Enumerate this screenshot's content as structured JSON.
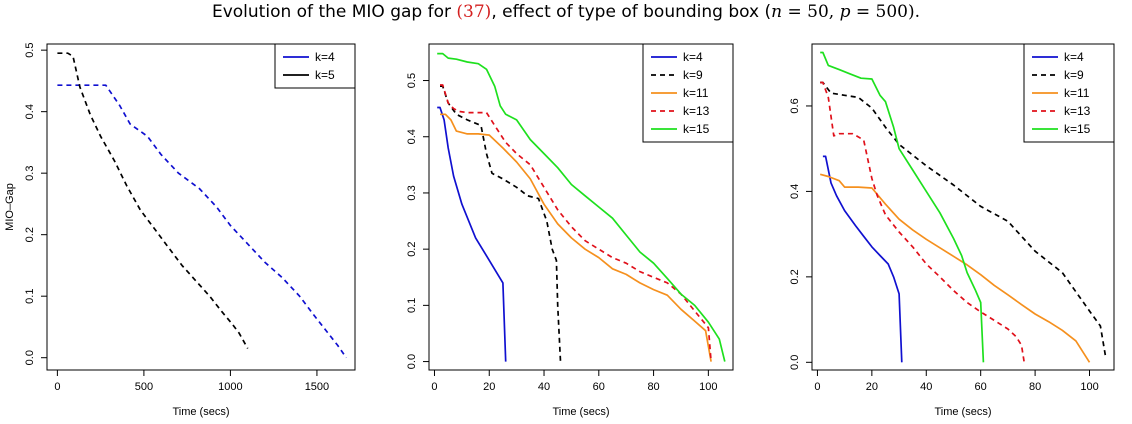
{
  "title": {
    "prefix": "Evolution of the MIO gap for ",
    "ref": "(37)",
    "middle": ", effect of type of bounding box (",
    "n_sym": "n",
    "eq1": " = 50, ",
    "p_sym": "p",
    "eq2": " = 500)."
  },
  "chart_data": [
    {
      "type": "line",
      "xlabel": "Time (secs)",
      "ylabel": "MIO–Gap",
      "xlim": [
        -60,
        1720
      ],
      "ylim": [
        -0.02,
        0.51
      ],
      "xticks": [
        0,
        500,
        1000,
        1500
      ],
      "xtick_labels": [
        "0",
        "500",
        "1000",
        "1500"
      ],
      "yticks": [
        0.0,
        0.1,
        0.2,
        0.3,
        0.4,
        0.5
      ],
      "ytick_labels": [
        "0.0",
        "0.1",
        "0.2",
        "0.3",
        "0.4",
        "0.5"
      ],
      "legend_position": "top-right",
      "series": [
        {
          "name": "k=4",
          "color": "#1010d0",
          "dash": "dashed",
          "legend_dash": "solid",
          "points": [
            [
              0,
              0.443
            ],
            [
              280,
              0.443
            ],
            [
              360,
              0.41
            ],
            [
              420,
              0.38
            ],
            [
              520,
              0.36
            ],
            [
              600,
              0.33
            ],
            [
              700,
              0.3
            ],
            [
              820,
              0.275
            ],
            [
              920,
              0.245
            ],
            [
              1000,
              0.215
            ],
            [
              1100,
              0.185
            ],
            [
              1200,
              0.155
            ],
            [
              1300,
              0.13
            ],
            [
              1400,
              0.1
            ],
            [
              1480,
              0.07
            ],
            [
              1550,
              0.045
            ],
            [
              1620,
              0.02
            ],
            [
              1670,
              0.0
            ]
          ]
        },
        {
          "name": "k=5",
          "color": "#000000",
          "dash": "dashed",
          "legend_dash": "solid",
          "points": [
            [
              0,
              0.495
            ],
            [
              60,
              0.495
            ],
            [
              90,
              0.49
            ],
            [
              130,
              0.44
            ],
            [
              190,
              0.395
            ],
            [
              250,
              0.36
            ],
            [
              330,
              0.32
            ],
            [
              400,
              0.28
            ],
            [
              480,
              0.24
            ],
            [
              560,
              0.21
            ],
            [
              640,
              0.18
            ],
            [
              720,
              0.15
            ],
            [
              800,
              0.125
            ],
            [
              880,
              0.1
            ],
            [
              950,
              0.075
            ],
            [
              1010,
              0.055
            ],
            [
              1050,
              0.04
            ],
            [
              1100,
              0.015
            ]
          ]
        }
      ]
    },
    {
      "type": "line",
      "xlabel": "Time (secs)",
      "ylabel": "",
      "xlim": [
        -2,
        109
      ],
      "ylim": [
        -0.015,
        0.565
      ],
      "xticks": [
        0,
        20,
        40,
        60,
        80,
        100
      ],
      "xtick_labels": [
        "0",
        "20",
        "40",
        "60",
        "80",
        "100"
      ],
      "yticks": [
        0.0,
        0.1,
        0.2,
        0.3,
        0.4,
        0.5
      ],
      "ytick_labels": [
        "0.0",
        "0.1",
        "0.2",
        "0.3",
        "0.4",
        "0.5"
      ],
      "legend_position": "top-right",
      "series": [
        {
          "name": "k=4",
          "color": "#1010d0",
          "dash": "solid",
          "points": [
            [
              1,
              0.452
            ],
            [
              2,
              0.452
            ],
            [
              3.5,
              0.43
            ],
            [
              5,
              0.38
            ],
            [
              7,
              0.33
            ],
            [
              10,
              0.28
            ],
            [
              15,
              0.22
            ],
            [
              20,
              0.18
            ],
            [
              25,
              0.14
            ],
            [
              26,
              0.0
            ]
          ]
        },
        {
          "name": "k=9",
          "color": "#000000",
          "dash": "dashed",
          "points": [
            [
              2,
              0.49
            ],
            [
              3,
              0.49
            ],
            [
              5,
              0.46
            ],
            [
              8,
              0.44
            ],
            [
              12,
              0.43
            ],
            [
              17,
              0.42
            ],
            [
              19,
              0.37
            ],
            [
              21,
              0.335
            ],
            [
              25,
              0.325
            ],
            [
              30,
              0.31
            ],
            [
              34,
              0.295
            ],
            [
              38,
              0.29
            ],
            [
              41,
              0.25
            ],
            [
              43,
              0.2
            ],
            [
              44.5,
              0.18
            ],
            [
              45,
              0.1
            ],
            [
              46,
              0.0
            ]
          ]
        },
        {
          "name": "k=11",
          "color": "#f5901e",
          "dash": "solid",
          "points": [
            [
              2,
              0.44
            ],
            [
              4,
              0.44
            ],
            [
              6,
              0.43
            ],
            [
              8,
              0.41
            ],
            [
              12,
              0.405
            ],
            [
              16,
              0.405
            ],
            [
              20,
              0.403
            ],
            [
              25,
              0.38
            ],
            [
              30,
              0.355
            ],
            [
              35,
              0.325
            ],
            [
              40,
              0.28
            ],
            [
              45,
              0.245
            ],
            [
              50,
              0.22
            ],
            [
              55,
              0.2
            ],
            [
              60,
              0.185
            ],
            [
              65,
              0.165
            ],
            [
              70,
              0.155
            ],
            [
              75,
              0.14
            ],
            [
              80,
              0.128
            ],
            [
              85,
              0.118
            ],
            [
              90,
              0.093
            ],
            [
              95,
              0.072
            ],
            [
              99,
              0.055
            ],
            [
              101,
              0.0
            ]
          ]
        },
        {
          "name": "k=13",
          "color": "#e0101a",
          "dash": "dashed",
          "points": [
            [
              2,
              0.492
            ],
            [
              3,
              0.492
            ],
            [
              5,
              0.46
            ],
            [
              7,
              0.45
            ],
            [
              9,
              0.445
            ],
            [
              12,
              0.443
            ],
            [
              17,
              0.443
            ],
            [
              19,
              0.443
            ],
            [
              22,
              0.42
            ],
            [
              26,
              0.39
            ],
            [
              30,
              0.37
            ],
            [
              35,
              0.35
            ],
            [
              40,
              0.31
            ],
            [
              45,
              0.27
            ],
            [
              50,
              0.24
            ],
            [
              55,
              0.215
            ],
            [
              60,
              0.2
            ],
            [
              65,
              0.185
            ],
            [
              70,
              0.175
            ],
            [
              75,
              0.16
            ],
            [
              80,
              0.15
            ],
            [
              85,
              0.14
            ],
            [
              90,
              0.12
            ],
            [
              95,
              0.09
            ],
            [
              100,
              0.06
            ],
            [
              101,
              0.0
            ]
          ]
        },
        {
          "name": "k=15",
          "color": "#1ee01e",
          "dash": "solid",
          "points": [
            [
              1,
              0.548
            ],
            [
              3,
              0.548
            ],
            [
              5,
              0.54
            ],
            [
              8,
              0.538
            ],
            [
              12,
              0.533
            ],
            [
              16,
              0.53
            ],
            [
              19,
              0.52
            ],
            [
              22,
              0.49
            ],
            [
              24,
              0.455
            ],
            [
              26,
              0.44
            ],
            [
              30,
              0.43
            ],
            [
              35,
              0.395
            ],
            [
              40,
              0.37
            ],
            [
              45,
              0.345
            ],
            [
              50,
              0.315
            ],
            [
              55,
              0.295
            ],
            [
              60,
              0.275
            ],
            [
              65,
              0.255
            ],
            [
              70,
              0.225
            ],
            [
              75,
              0.195
            ],
            [
              80,
              0.175
            ],
            [
              85,
              0.148
            ],
            [
              90,
              0.12
            ],
            [
              95,
              0.1
            ],
            [
              100,
              0.07
            ],
            [
              104,
              0.04
            ],
            [
              106,
              0.0
            ]
          ]
        }
      ]
    },
    {
      "type": "line",
      "xlabel": "Time (secs)",
      "ylabel": "",
      "xlim": [
        -2,
        109
      ],
      "ylim": [
        -0.018,
        0.745
      ],
      "xticks": [
        0,
        20,
        40,
        60,
        80,
        100
      ],
      "xtick_labels": [
        "0",
        "20",
        "40",
        "60",
        "80",
        "100"
      ],
      "yticks": [
        0.0,
        0.2,
        0.4,
        0.6
      ],
      "ytick_labels": [
        "0.0",
        "0.2",
        "0.4",
        "0.6"
      ],
      "legend_position": "top-right",
      "series": [
        {
          "name": "k=4",
          "color": "#1010d0",
          "dash": "solid",
          "points": [
            [
              2,
              0.482
            ],
            [
              3,
              0.482
            ],
            [
              5,
              0.42
            ],
            [
              7,
              0.39
            ],
            [
              10,
              0.355
            ],
            [
              14,
              0.32
            ],
            [
              17,
              0.295
            ],
            [
              20,
              0.27
            ],
            [
              23,
              0.25
            ],
            [
              26,
              0.23
            ],
            [
              28,
              0.2
            ],
            [
              30,
              0.16
            ],
            [
              31,
              0.0
            ]
          ]
        },
        {
          "name": "k=9",
          "color": "#000000",
          "dash": "dashed",
          "points": [
            [
              1,
              0.655
            ],
            [
              2,
              0.655
            ],
            [
              5,
              0.63
            ],
            [
              10,
              0.625
            ],
            [
              15,
              0.62
            ],
            [
              20,
              0.595
            ],
            [
              25,
              0.55
            ],
            [
              30,
              0.51
            ],
            [
              40,
              0.46
            ],
            [
              50,
              0.415
            ],
            [
              60,
              0.365
            ],
            [
              70,
              0.33
            ],
            [
              80,
              0.26
            ],
            [
              90,
              0.21
            ],
            [
              100,
              0.12
            ],
            [
              104,
              0.085
            ],
            [
              106,
              0.01
            ]
          ]
        },
        {
          "name": "k=11",
          "color": "#f5901e",
          "dash": "solid",
          "points": [
            [
              1,
              0.44
            ],
            [
              4,
              0.435
            ],
            [
              8,
              0.425
            ],
            [
              10,
              0.41
            ],
            [
              15,
              0.41
            ],
            [
              20,
              0.408
            ],
            [
              25,
              0.37
            ],
            [
              30,
              0.335
            ],
            [
              35,
              0.31
            ],
            [
              40,
              0.288
            ],
            [
              45,
              0.268
            ],
            [
              50,
              0.248
            ],
            [
              55,
              0.228
            ],
            [
              60,
              0.205
            ],
            [
              65,
              0.18
            ],
            [
              70,
              0.158
            ],
            [
              75,
              0.135
            ],
            [
              80,
              0.113
            ],
            [
              85,
              0.095
            ],
            [
              90,
              0.075
            ],
            [
              95,
              0.05
            ],
            [
              100,
              0.0
            ]
          ]
        },
        {
          "name": "k=13",
          "color": "#e0101a",
          "dash": "dashed",
          "points": [
            [
              1,
              0.655
            ],
            [
              2,
              0.655
            ],
            [
              4,
              0.62
            ],
            [
              6,
              0.53
            ],
            [
              8,
              0.535
            ],
            [
              13,
              0.535
            ],
            [
              17,
              0.52
            ],
            [
              20,
              0.43
            ],
            [
              22,
              0.39
            ],
            [
              25,
              0.345
            ],
            [
              30,
              0.305
            ],
            [
              35,
              0.27
            ],
            [
              40,
              0.23
            ],
            [
              45,
              0.2
            ],
            [
              50,
              0.168
            ],
            [
              55,
              0.14
            ],
            [
              60,
              0.118
            ],
            [
              65,
              0.098
            ],
            [
              70,
              0.078
            ],
            [
              73,
              0.06
            ],
            [
              75,
              0.04
            ],
            [
              76,
              0.0
            ]
          ]
        },
        {
          "name": "k=15",
          "color": "#1ee01e",
          "dash": "solid",
          "points": [
            [
              1,
              0.725
            ],
            [
              2,
              0.725
            ],
            [
              4,
              0.695
            ],
            [
              8,
              0.685
            ],
            [
              12,
              0.675
            ],
            [
              16,
              0.665
            ],
            [
              20,
              0.663
            ],
            [
              23,
              0.625
            ],
            [
              25,
              0.61
            ],
            [
              28,
              0.55
            ],
            [
              30,
              0.5
            ],
            [
              35,
              0.45
            ],
            [
              40,
              0.4
            ],
            [
              45,
              0.35
            ],
            [
              50,
              0.29
            ],
            [
              53,
              0.25
            ],
            [
              55,
              0.21
            ],
            [
              58,
              0.17
            ],
            [
              60,
              0.14
            ],
            [
              61,
              0.0
            ]
          ]
        }
      ]
    }
  ]
}
